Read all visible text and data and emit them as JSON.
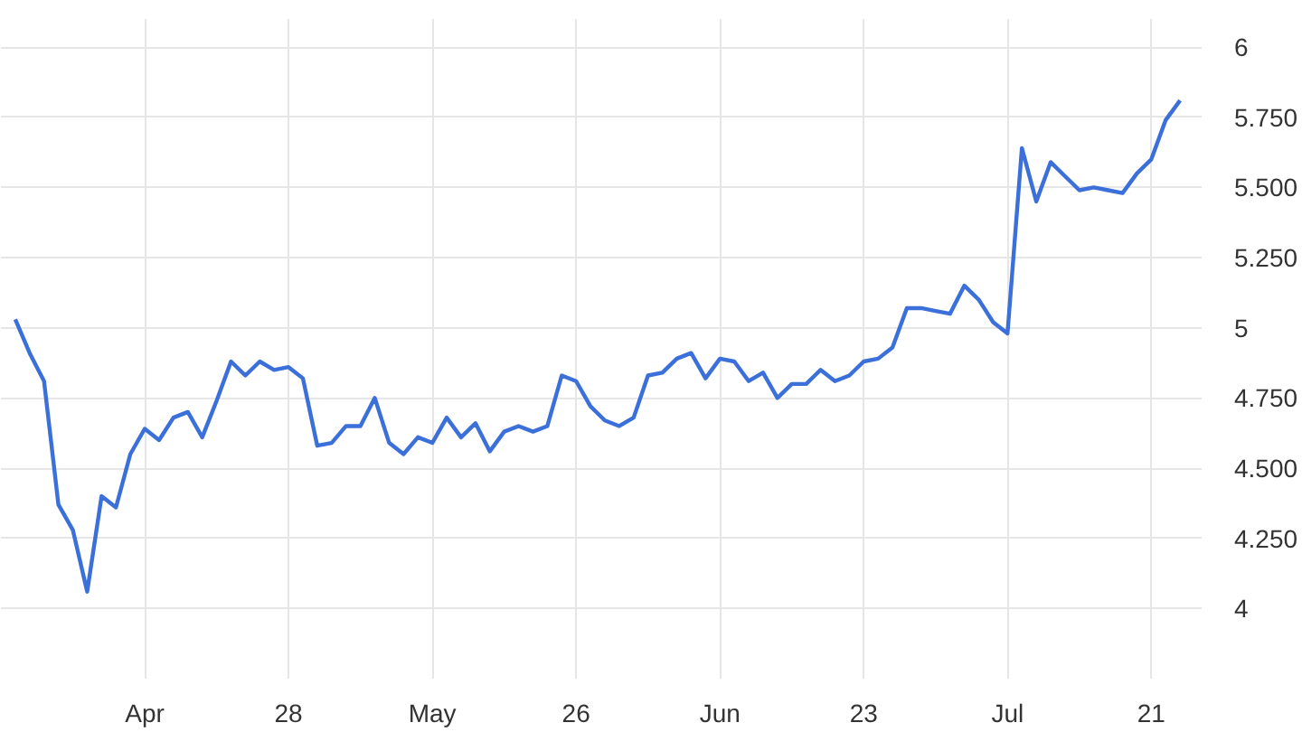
{
  "chart_data": {
    "type": "line",
    "categories": [
      null,
      null,
      null,
      null,
      null,
      null,
      null,
      null,
      null,
      "Apr",
      null,
      null,
      null,
      null,
      null,
      null,
      null,
      null,
      null,
      "28",
      null,
      null,
      null,
      null,
      null,
      null,
      null,
      null,
      null,
      "May",
      null,
      null,
      null,
      null,
      null,
      null,
      null,
      null,
      null,
      "26",
      null,
      null,
      null,
      null,
      null,
      null,
      null,
      null,
      null,
      "Jun",
      null,
      null,
      null,
      null,
      null,
      null,
      null,
      null,
      null,
      "23",
      null,
      null,
      null,
      null,
      null,
      null,
      null,
      null,
      null,
      "Jul",
      null,
      null,
      null,
      null,
      null,
      null,
      null,
      null,
      null,
      "21",
      null,
      null
    ],
    "series": [
      {
        "color": "#3b6fd9",
        "values": [
          5.03,
          4.91,
          4.81,
          4.37,
          4.28,
          4.06,
          4.4,
          4.36,
          4.55,
          4.64,
          4.6,
          4.68,
          4.7,
          4.61,
          4.74,
          4.88,
          4.83,
          4.88,
          4.85,
          4.86,
          4.82,
          4.58,
          4.59,
          4.65,
          4.65,
          4.75,
          4.59,
          4.55,
          4.61,
          4.59,
          4.68,
          4.61,
          4.66,
          4.56,
          4.63,
          4.65,
          4.63,
          4.65,
          4.83,
          4.81,
          4.72,
          4.67,
          4.65,
          4.68,
          4.83,
          4.84,
          4.89,
          4.91,
          4.82,
          4.89,
          4.88,
          4.81,
          4.84,
          4.75,
          4.8,
          4.8,
          4.85,
          4.81,
          4.83,
          4.88,
          4.89,
          4.93,
          5.07,
          5.07,
          5.06,
          5.05,
          5.15,
          5.1,
          5.02,
          4.98,
          5.64,
          5.45,
          5.59,
          5.54,
          5.49,
          5.5,
          5.49,
          5.48,
          5.55,
          5.6,
          5.74,
          5.81
        ]
      }
    ],
    "ylim": [
      3.75,
      6.1
    ],
    "yticks": [
      4,
      {
        "value": 4.25,
        "label": "4.250"
      },
      {
        "value": 4.5,
        "label": "4.500"
      },
      {
        "value": 4.75,
        "label": "4.750"
      },
      5,
      {
        "value": 5.25,
        "label": "5.250"
      },
      {
        "value": 5.5,
        "label": "5.500"
      },
      {
        "value": 5.75,
        "label": "5.750"
      },
      6
    ],
    "grid": true,
    "line_style": "solid"
  }
}
